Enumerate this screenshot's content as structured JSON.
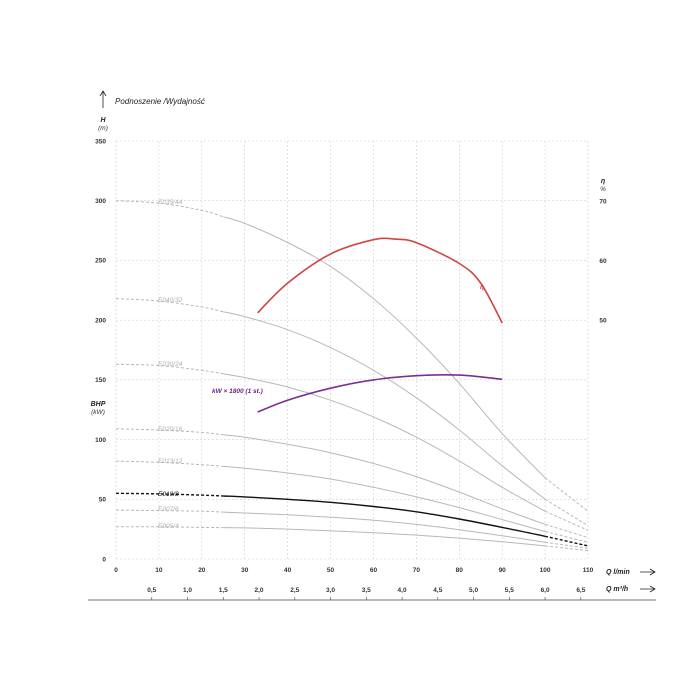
{
  "chart_data": {
    "type": "line",
    "title": "Podnoszenie /Wydajność",
    "y_left": {
      "label": "H",
      "unit": "(m)",
      "ticks": [
        "0",
        "50",
        "100",
        "150",
        "200",
        "250",
        "300",
        "350"
      ],
      "range": [
        0,
        350
      ]
    },
    "bhp": {
      "label": "BHP",
      "unit": "(kW)"
    },
    "y_right": {
      "label": "η",
      "unit": "%",
      "ticks": [
        "50",
        "60",
        "70"
      ],
      "tick_values": [
        50,
        60,
        70
      ]
    },
    "x_main": {
      "label": "Q l/min",
      "ticks": [
        "0",
        "10",
        "20",
        "30",
        "40",
        "50",
        "60",
        "70",
        "80",
        "90",
        "100",
        "110"
      ],
      "range": [
        0,
        110
      ]
    },
    "x_secondary": {
      "label": "Q m³/h",
      "ticks": [
        "0,5",
        "1,0",
        "1,5",
        "2,0",
        "2,5",
        "3,0",
        "3,5",
        "4,0",
        "4,5",
        "5,0",
        "5,5",
        "6,0",
        "6,5"
      ],
      "tick_values": [
        0.5,
        1.0,
        1.5,
        2.0,
        2.5,
        3.0,
        3.5,
        4.0,
        4.5,
        5.0,
        5.5,
        6.0,
        6.5
      ]
    },
    "grid": true,
    "series": [
      {
        "name": "E035/44",
        "color": "#b8b8b8",
        "label_color": "#b0b0b0",
        "x": [
          0,
          10,
          20,
          30,
          40,
          50,
          60,
          70,
          80,
          90,
          100,
          110
        ],
        "y": [
          300,
          298,
          292,
          281,
          265,
          245,
          218,
          185,
          147,
          105,
          68,
          40
        ]
      },
      {
        "name": "E040/32",
        "color": "#b8b8b8",
        "label_color": "#b0b0b0",
        "x": [
          0,
          10,
          20,
          30,
          40,
          50,
          60,
          70,
          80,
          90,
          100,
          110
        ],
        "y": [
          218,
          216,
          211,
          203,
          192,
          177,
          158,
          135,
          108,
          78,
          50,
          28
        ]
      },
      {
        "name": "E030/24",
        "color": "#b8b8b8",
        "label_color": "#b0b0b0",
        "x": [
          0,
          10,
          20,
          30,
          40,
          50,
          60,
          70,
          80,
          90,
          100,
          110
        ],
        "y": [
          163,
          162,
          158,
          152,
          144,
          133,
          119,
          102,
          82,
          60,
          40,
          24
        ]
      },
      {
        "name": "E020/16",
        "color": "#b8b8b8",
        "label_color": "#b0b0b0",
        "x": [
          0,
          10,
          20,
          30,
          40,
          50,
          60,
          70,
          80,
          90,
          100,
          110
        ],
        "y": [
          109,
          108,
          106,
          102,
          96,
          89,
          80,
          69,
          56,
          42,
          29,
          18
        ]
      },
      {
        "name": "E013/12",
        "color": "#b8b8b8",
        "label_color": "#b0b0b0",
        "x": [
          0,
          10,
          20,
          30,
          40,
          50,
          60,
          70,
          80,
          90,
          100,
          110
        ],
        "y": [
          82,
          81,
          79,
          76,
          72,
          67,
          60,
          52,
          43,
          33,
          23,
          14
        ]
      },
      {
        "name": "E010/8",
        "color": "#111111",
        "label_color": "#111111",
        "x": [
          0,
          10,
          20,
          30,
          40,
          50,
          60,
          70,
          80,
          90,
          100,
          110
        ],
        "y": [
          55,
          54.5,
          53.5,
          52,
          50,
          47.5,
          44,
          39.5,
          33.5,
          26.5,
          19,
          11
        ]
      },
      {
        "name": "E007/6",
        "color": "#b8b8b8",
        "label_color": "#b0b0b0",
        "x": [
          0,
          10,
          20,
          30,
          40,
          50,
          60,
          70,
          80,
          90,
          100,
          110
        ],
        "y": [
          41,
          40.5,
          40,
          38.5,
          37,
          35,
          32.5,
          29,
          24.5,
          19.5,
          14,
          9
        ]
      },
      {
        "name": "E005/4",
        "color": "#b8b8b8",
        "label_color": "#b0b0b0",
        "x": [
          0,
          10,
          20,
          30,
          40,
          50,
          60,
          70,
          80,
          90,
          100,
          110
        ],
        "y": [
          27,
          27,
          26.5,
          26,
          25,
          23.5,
          22,
          20,
          17.5,
          14.5,
          11,
          7
        ]
      },
      {
        "name": "η",
        "color": "#d04545",
        "label_color": "#c03a3a",
        "axis": "right",
        "x": [
          33,
          40,
          50,
          60,
          65,
          70,
          80,
          85,
          90
        ],
        "y": [
          51.2,
          56.2,
          61.1,
          63.5,
          63.6,
          63,
          59.5,
          56.2,
          49.5
        ]
      },
      {
        "name": "kW × 1800 (1 st.)",
        "color": "#7a2f94",
        "label_color": "#6b2586",
        "x": [
          33,
          40,
          50,
          60,
          70,
          80,
          90
        ],
        "y": [
          123,
          133,
          143,
          150,
          153.5,
          154,
          150.5
        ]
      }
    ]
  }
}
